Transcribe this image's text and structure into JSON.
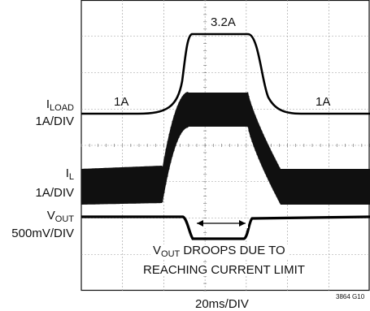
{
  "chart_data": {
    "type": "line",
    "x_scale": "20ms/DIV",
    "figure_id": "3864 G10",
    "grid": true,
    "divisions": {
      "x": 7,
      "y": 8
    },
    "series": [
      {
        "name_main": "I",
        "name_sub": "LOAD",
        "scale": "1A/DIV"
      },
      {
        "name_main": "I",
        "name_sub": "L",
        "scale": "1A/DIV"
      },
      {
        "name_main": "V",
        "name_sub": "OUT",
        "scale": "500mV/DIV"
      }
    ],
    "annotations": {
      "peak_load": "3.2A",
      "base_load_left": "1A",
      "base_load_right": "1A",
      "droop_line1_main": "V",
      "droop_line1_sub": "OUT",
      "droop_line1_rest": " DROOPS DUE TO",
      "droop_line2": "REACHING CURRENT LIMIT"
    }
  }
}
